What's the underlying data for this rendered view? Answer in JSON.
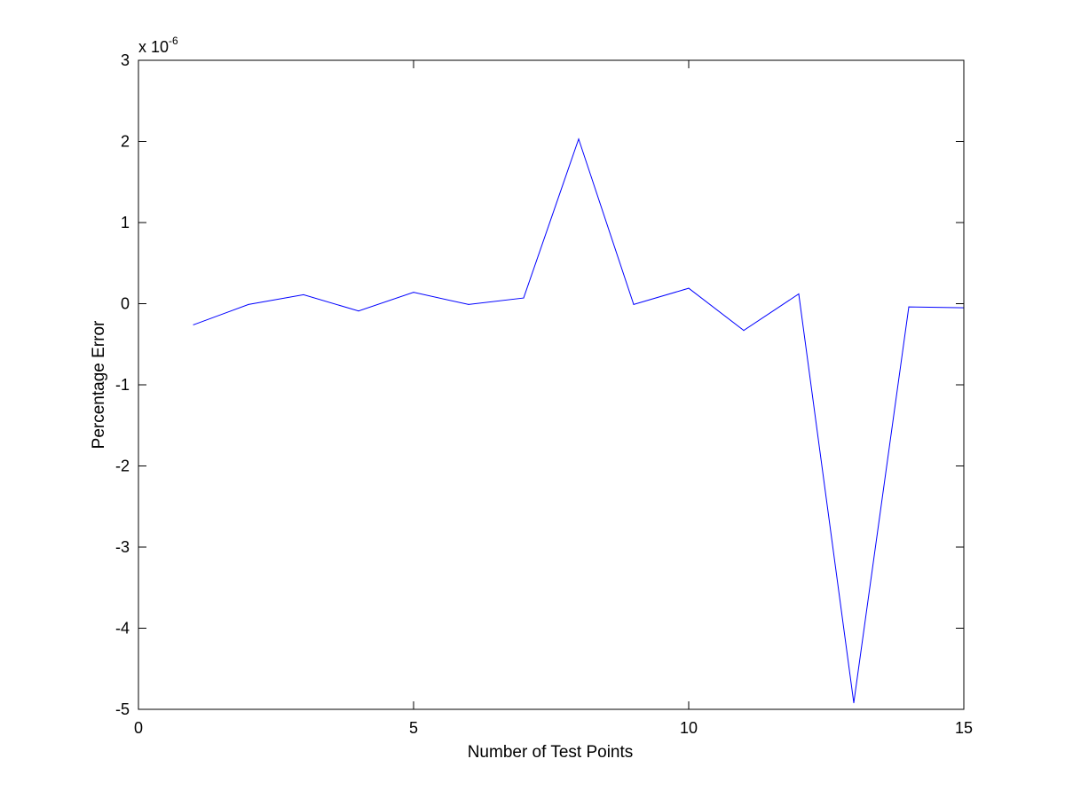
{
  "chart_data": {
    "type": "line",
    "title": "",
    "xlabel": "Number of Test Points",
    "ylabel": "Percentage Error",
    "y_multiplier": {
      "prefix": "x 10",
      "exponent": "-6"
    },
    "xlim": [
      0,
      15
    ],
    "ylim": [
      -5,
      3
    ],
    "grid": false,
    "x_ticks": [
      0,
      5,
      10,
      15
    ],
    "y_ticks": [
      -5,
      -4,
      -3,
      -2,
      -1,
      0,
      1,
      2,
      3
    ],
    "series": [
      {
        "color": "#0000ff",
        "x": [
          1,
          2,
          3,
          4,
          5,
          6,
          7,
          8,
          9,
          10,
          11,
          12,
          13,
          14,
          15
        ],
        "y": [
          -0.26,
          -0.01,
          0.11,
          -0.09,
          0.14,
          -0.01,
          0.07,
          2.03,
          -0.01,
          0.19,
          -0.33,
          0.12,
          -4.92,
          -0.04,
          -0.05
        ]
      }
    ]
  }
}
